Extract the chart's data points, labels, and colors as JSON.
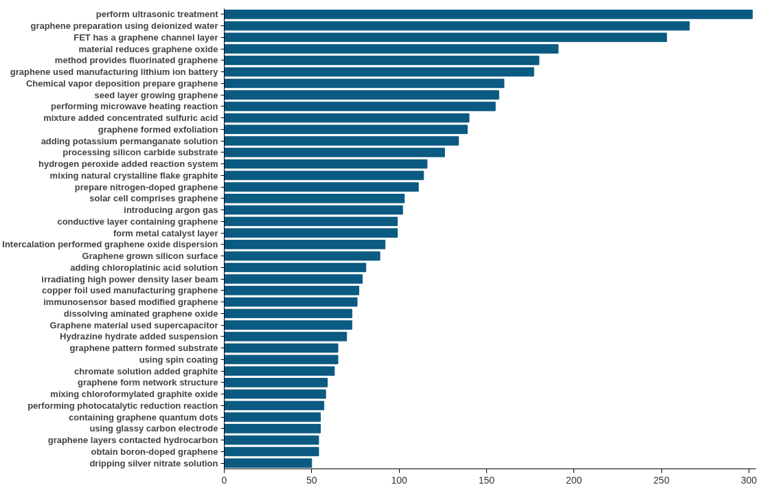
{
  "chart_data": {
    "type": "bar",
    "orientation": "horizontal",
    "color": "#0b5a82",
    "grid": false,
    "categories": [
      "perform ultrasonic treatment",
      "graphene preparation using deionized water",
      "FET has a graphene channel layer",
      "material reduces graphene oxide",
      "method provides fluorinated graphene",
      "graphene used manufacturing lithium ion battery",
      "Chemical vapor deposition prepare graphene",
      "seed layer growing graphene",
      "performing microwave heating reaction",
      "mixture added concentrated sulfuric acid",
      "graphene formed exfoliation",
      "adding potassium permanganate solution",
      "processing silicon carbide substrate",
      "hydrogen peroxide added reaction system",
      "mixing natural crystalline flake graphite",
      "prepare nitrogen-doped graphene",
      "solar cell comprises graphene",
      "introducing argon gas",
      "conductive layer containing graphene",
      "form metal catalyst layer",
      "Intercalation performed graphene oxide dispersion",
      "Graphene grown silicon surface",
      "adding chloroplatinic acid solution",
      "irradiating high power density laser beam",
      "copper foil used manufacturing graphene",
      "immunosensor based modified graphene",
      "dissolving aminated graphene oxide",
      "Graphene material used supercapacitor",
      "Hydrazine hydrate added suspension",
      "graphene pattern formed substrate",
      "using spin coating",
      "chromate solution added graphite",
      "graphene form network structure",
      "mixing chloroformylated graphite oxide",
      "performing photocatalytic reduction reaction",
      "containing graphene quantum dots",
      "using glassy carbon electrode",
      "graphene layers contacted hydrocarbon",
      "obtain boron-doped graphene",
      "dripping silver nitrate solution"
    ],
    "values": [
      302,
      266,
      253,
      191,
      180,
      177,
      160,
      157,
      155,
      140,
      139,
      134,
      126,
      116,
      114,
      111,
      103,
      102,
      99,
      99,
      92,
      89,
      81,
      79,
      77,
      76,
      73,
      73,
      70,
      65,
      65,
      63,
      59,
      58,
      57,
      55,
      55,
      54,
      54,
      50
    ],
    "xlim": [
      0,
      304
    ],
    "xticks": [
      0,
      50,
      100,
      150,
      200,
      250,
      300
    ]
  }
}
